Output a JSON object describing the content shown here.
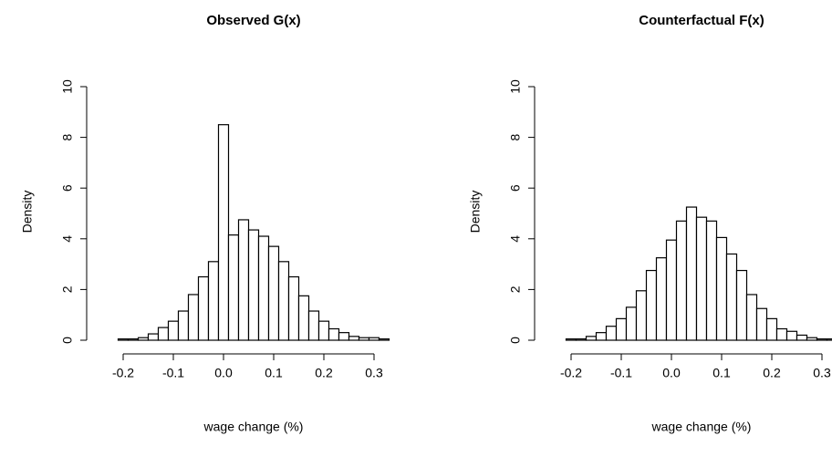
{
  "chart_data": [
    {
      "type": "histogram",
      "title": "Observed G(x)",
      "xlabel": "wage change (%)",
      "ylabel": "Density",
      "bins": [
        -0.21,
        -0.19,
        -0.17,
        -0.15,
        -0.13,
        -0.11,
        -0.09,
        -0.07,
        -0.05,
        -0.03,
        -0.01,
        0.01,
        0.03,
        0.05,
        0.07,
        0.09,
        0.11,
        0.13,
        0.15,
        0.17,
        0.19,
        0.21,
        0.23,
        0.25,
        0.27,
        0.29,
        0.31,
        0.33
      ],
      "values": [
        0.05,
        0.05,
        0.1,
        0.25,
        0.5,
        0.75,
        1.15,
        1.8,
        2.5,
        3.1,
        8.5,
        4.15,
        4.75,
        4.35,
        4.1,
        3.7,
        3.1,
        2.5,
        1.75,
        1.15,
        0.75,
        0.45,
        0.3,
        0.15,
        0.1,
        0.1,
        0.05
      ],
      "xlim": [
        -0.21,
        0.33
      ],
      "ylim": [
        0,
        10
      ],
      "xticks": [
        -0.2,
        -0.1,
        {
          "value": 0,
          "label": "0.0"
        },
        0.1,
        0.2,
        0.3
      ],
      "yticks": [
        0,
        2,
        4,
        6,
        8,
        10
      ]
    },
    {
      "type": "histogram",
      "title": "Counterfactual F(x)",
      "xlabel": "wage change (%)",
      "ylabel": "Density",
      "bins": [
        -0.21,
        -0.19,
        -0.17,
        -0.15,
        -0.13,
        -0.11,
        -0.09,
        -0.07,
        -0.05,
        -0.03,
        -0.01,
        0.01,
        0.03,
        0.05,
        0.07,
        0.09,
        0.11,
        0.13,
        0.15,
        0.17,
        0.19,
        0.21,
        0.23,
        0.25,
        0.27,
        0.29,
        0.31,
        0.33
      ],
      "values": [
        0.05,
        0.05,
        0.15,
        0.3,
        0.55,
        0.85,
        1.3,
        1.95,
        2.75,
        3.25,
        3.95,
        4.7,
        5.25,
        4.85,
        4.7,
        4.05,
        3.4,
        2.75,
        1.8,
        1.25,
        0.85,
        0.45,
        0.35,
        0.2,
        0.1,
        0.05,
        0.05
      ],
      "xlim": [
        -0.21,
        0.33
      ],
      "ylim": [
        0,
        10
      ],
      "xticks": [
        -0.2,
        -0.1,
        {
          "value": 0,
          "label": "0.0"
        },
        0.1,
        0.2,
        0.3
      ],
      "yticks": [
        0,
        2,
        4,
        6,
        8,
        10
      ]
    }
  ]
}
